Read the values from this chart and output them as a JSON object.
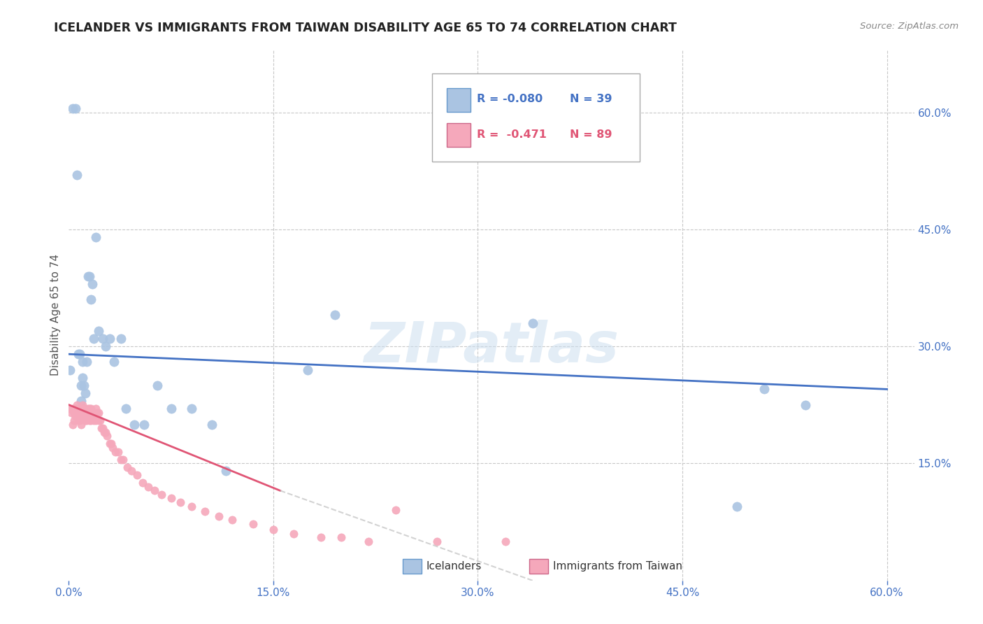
{
  "title": "ICELANDER VS IMMIGRANTS FROM TAIWAN DISABILITY AGE 65 TO 74 CORRELATION CHART",
  "source": "Source: ZipAtlas.com",
  "ylabel": "Disability Age 65 to 74",
  "xlim": [
    0.0,
    0.62
  ],
  "ylim": [
    0.0,
    0.68
  ],
  "xticks": [
    0.0,
    0.15,
    0.3,
    0.45,
    0.6
  ],
  "yticks_right": [
    0.15,
    0.3,
    0.45,
    0.6
  ],
  "ytick_labels_right": [
    "15.0%",
    "30.0%",
    "45.0%",
    "60.0%"
  ],
  "xtick_labels": [
    "0.0%",
    "15.0%",
    "30.0%",
    "45.0%",
    "60.0%"
  ],
  "legend_r1": "-0.080",
  "legend_n1": "39",
  "legend_r2": "-0.471",
  "legend_n2": "89",
  "icelander_color": "#aac4e2",
  "taiwan_color": "#f5a8bb",
  "icelander_line_color": "#4472c4",
  "taiwan_line_color": "#e05575",
  "taiwan_line_ext_color": "#c8c8c8",
  "watermark": "ZIPatlas",
  "icelanders_x": [
    0.001,
    0.003,
    0.005,
    0.006,
    0.007,
    0.008,
    0.009,
    0.009,
    0.01,
    0.01,
    0.011,
    0.012,
    0.013,
    0.014,
    0.015,
    0.016,
    0.017,
    0.018,
    0.02,
    0.022,
    0.025,
    0.027,
    0.03,
    0.033,
    0.038,
    0.042,
    0.048,
    0.055,
    0.065,
    0.075,
    0.09,
    0.105,
    0.115,
    0.175,
    0.195,
    0.34,
    0.49,
    0.51,
    0.54
  ],
  "icelanders_y": [
    0.27,
    0.605,
    0.605,
    0.52,
    0.29,
    0.29,
    0.25,
    0.23,
    0.28,
    0.26,
    0.25,
    0.24,
    0.28,
    0.39,
    0.39,
    0.36,
    0.38,
    0.31,
    0.44,
    0.32,
    0.31,
    0.3,
    0.31,
    0.28,
    0.31,
    0.22,
    0.2,
    0.2,
    0.25,
    0.22,
    0.22,
    0.2,
    0.14,
    0.27,
    0.34,
    0.33,
    0.095,
    0.245,
    0.225
  ],
  "taiwan_x": [
    0.001,
    0.002,
    0.003,
    0.003,
    0.004,
    0.004,
    0.005,
    0.005,
    0.005,
    0.006,
    0.006,
    0.006,
    0.006,
    0.007,
    0.007,
    0.007,
    0.008,
    0.008,
    0.008,
    0.009,
    0.009,
    0.009,
    0.01,
    0.01,
    0.01,
    0.01,
    0.011,
    0.011,
    0.011,
    0.012,
    0.012,
    0.012,
    0.013,
    0.013,
    0.013,
    0.014,
    0.014,
    0.015,
    0.015,
    0.015,
    0.016,
    0.016,
    0.016,
    0.017,
    0.017,
    0.018,
    0.018,
    0.019,
    0.019,
    0.02,
    0.02,
    0.021,
    0.022,
    0.022,
    0.023,
    0.024,
    0.025,
    0.026,
    0.027,
    0.028,
    0.03,
    0.031,
    0.032,
    0.034,
    0.036,
    0.038,
    0.04,
    0.043,
    0.046,
    0.05,
    0.054,
    0.058,
    0.063,
    0.068,
    0.075,
    0.082,
    0.09,
    0.1,
    0.11,
    0.12,
    0.135,
    0.15,
    0.165,
    0.185,
    0.2,
    0.22,
    0.24,
    0.27,
    0.32
  ],
  "taiwan_y": [
    0.22,
    0.215,
    0.22,
    0.2,
    0.215,
    0.205,
    0.21,
    0.22,
    0.21,
    0.225,
    0.215,
    0.21,
    0.22,
    0.215,
    0.205,
    0.21,
    0.205,
    0.21,
    0.22,
    0.21,
    0.2,
    0.215,
    0.21,
    0.22,
    0.215,
    0.225,
    0.215,
    0.21,
    0.22,
    0.205,
    0.21,
    0.22,
    0.21,
    0.215,
    0.205,
    0.215,
    0.22,
    0.22,
    0.205,
    0.21,
    0.205,
    0.215,
    0.22,
    0.21,
    0.215,
    0.215,
    0.205,
    0.21,
    0.215,
    0.22,
    0.205,
    0.215,
    0.215,
    0.205,
    0.205,
    0.195,
    0.195,
    0.19,
    0.19,
    0.185,
    0.175,
    0.175,
    0.17,
    0.165,
    0.165,
    0.155,
    0.155,
    0.145,
    0.14,
    0.135,
    0.125,
    0.12,
    0.115,
    0.11,
    0.105,
    0.1,
    0.095,
    0.088,
    0.082,
    0.078,
    0.072,
    0.065,
    0.06,
    0.055,
    0.055,
    0.05,
    0.09,
    0.05,
    0.05
  ]
}
